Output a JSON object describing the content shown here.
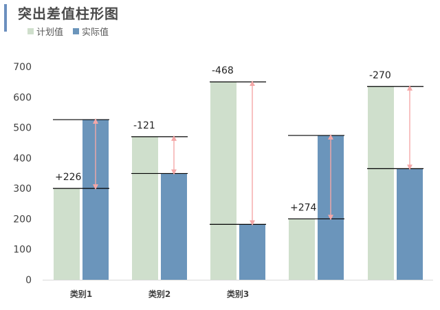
{
  "title": "突出差值柱形图",
  "colors": {
    "planned": "#cfdfcc",
    "actual": "#6b95bb",
    "arrow": "#f4a7a7",
    "title_bar": "#6b8fbf",
    "axis": "#d9d9d9",
    "line": "#000000"
  },
  "legend": [
    {
      "label": "计划值",
      "color": "#cfdfcc"
    },
    {
      "label": "实际值",
      "color": "#6b95bb"
    }
  ],
  "chart_data": {
    "type": "bar",
    "categories": [
      "类别1",
      "类别2",
      "类别3",
      "",
      ""
    ],
    "series": [
      {
        "name": "计划值",
        "values": [
          300,
          470,
          650,
          200,
          635
        ]
      },
      {
        "name": "实际值",
        "values": [
          526,
          349,
          182,
          474,
          365
        ]
      }
    ],
    "differences": [
      "+226",
      "-121",
      "-468",
      "+274",
      "-270"
    ],
    "ylim": [
      0,
      700
    ],
    "yticks": [
      0,
      100,
      200,
      300,
      400,
      500,
      600,
      700
    ],
    "grid": false,
    "legend_position": "top-left"
  }
}
